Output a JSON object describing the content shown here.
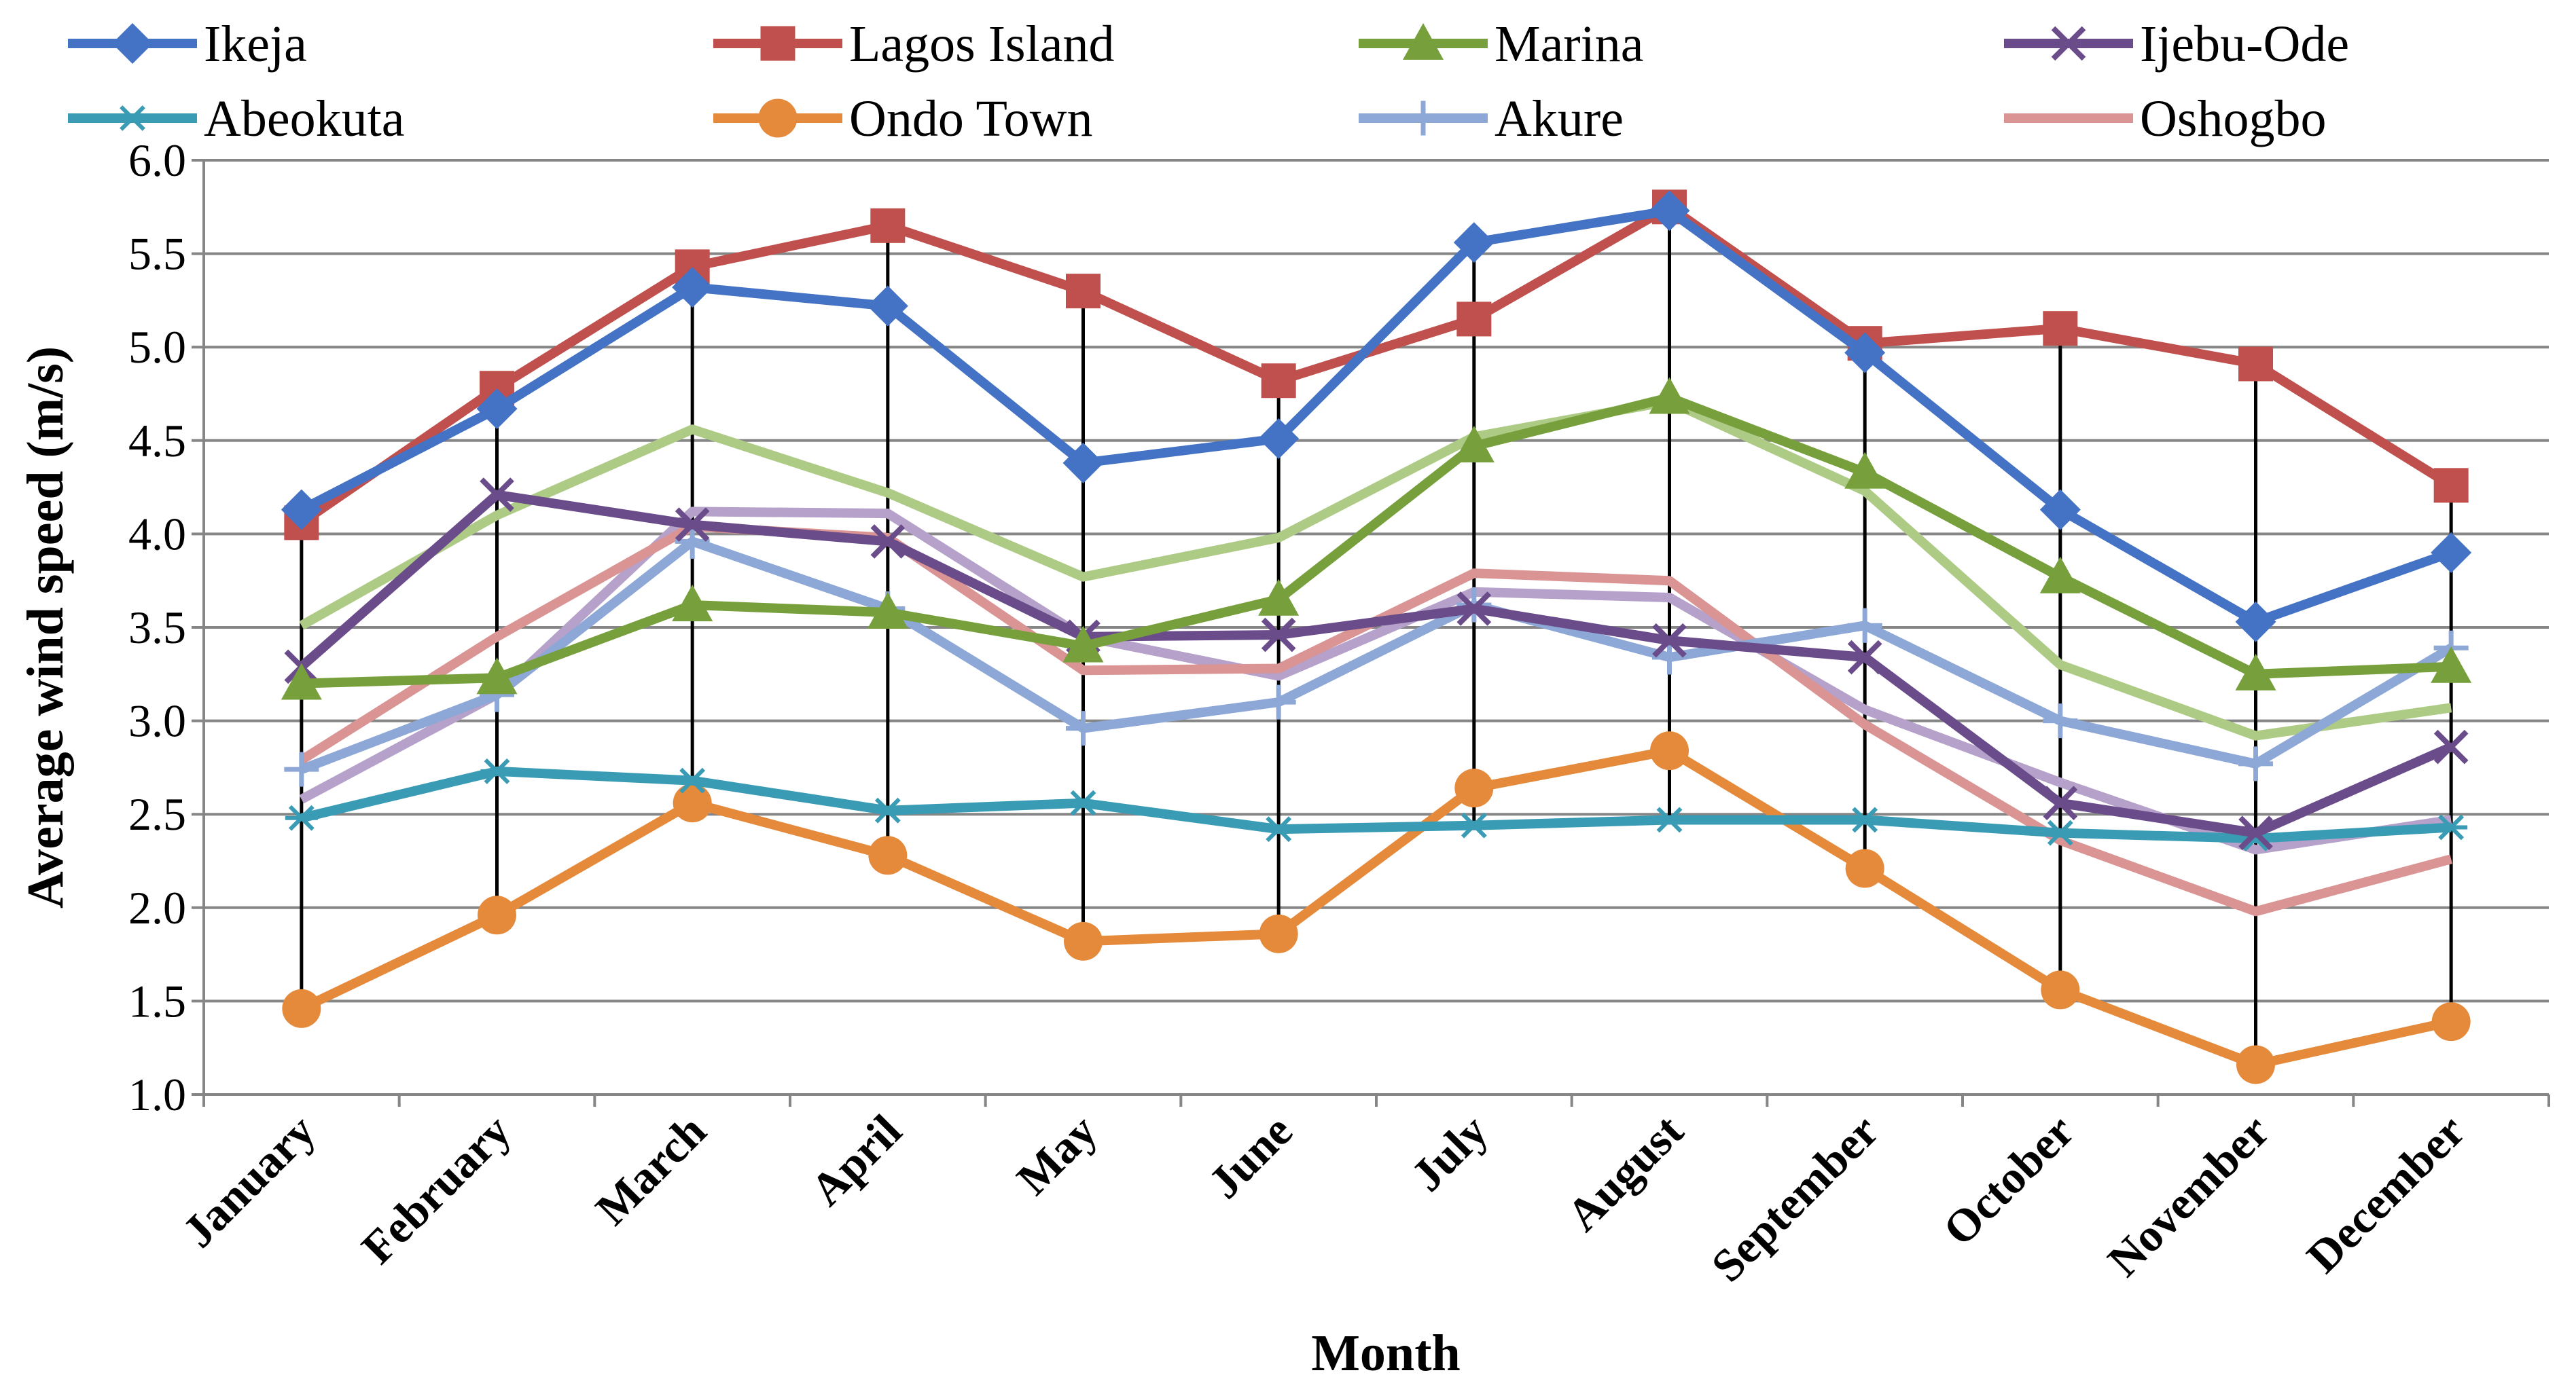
{
  "chart_data": {
    "type": "line",
    "title": "",
    "xlabel": "Month",
    "ylabel": "Average wind speed (m/s)",
    "ylim": [
      1.0,
      6.0
    ],
    "ytick_step": 0.5,
    "yticks": [
      "1.0",
      "1.5",
      "2.0",
      "2.5",
      "3.0",
      "3.5",
      "4.0",
      "4.5",
      "5.0",
      "5.5",
      "6.0"
    ],
    "grid": true,
    "legend_position": "top",
    "categories": [
      "January",
      "February",
      "March",
      "April",
      "May",
      "June",
      "July",
      "August",
      "September",
      "October",
      "November",
      "December"
    ],
    "series": [
      {
        "name": "Ikeja",
        "color": "#4472C4",
        "marker": "diamond",
        "values": [
          4.13,
          4.67,
          5.32,
          5.22,
          4.38,
          4.51,
          5.56,
          5.73,
          4.97,
          4.13,
          3.53,
          3.9
        ]
      },
      {
        "name": "Lagos Island",
        "color": "#C0504D",
        "marker": "square",
        "values": [
          4.06,
          4.78,
          5.43,
          5.65,
          5.3,
          4.82,
          5.15,
          5.75,
          5.02,
          5.1,
          4.91,
          4.26
        ]
      },
      {
        "name": "Marina",
        "color": "#77A03C",
        "marker": "triangle",
        "values": [
          3.2,
          3.23,
          3.62,
          3.58,
          3.4,
          3.65,
          4.47,
          4.73,
          4.33,
          3.77,
          3.25,
          3.29
        ]
      },
      {
        "name": "Ijebu-Ode",
        "color": "#6B4C8A",
        "marker": "x",
        "values": [
          3.29,
          4.21,
          4.05,
          3.96,
          3.45,
          3.46,
          3.6,
          3.43,
          3.34,
          2.56,
          2.4,
          2.86
        ]
      },
      {
        "name": "Abeokuta",
        "color": "#3A9BB5",
        "marker": "asterisk",
        "values": [
          2.48,
          2.73,
          2.68,
          2.52,
          2.56,
          2.42,
          2.44,
          2.47,
          2.47,
          2.4,
          2.37,
          2.43
        ]
      },
      {
        "name": "Ondo Town",
        "color": "#E5893A",
        "marker": "circle",
        "values": [
          1.46,
          1.96,
          2.56,
          2.28,
          1.82,
          1.86,
          2.64,
          2.84,
          2.21,
          1.56,
          1.16,
          1.39
        ]
      },
      {
        "name": "Akure",
        "color": "#8DA7D6",
        "marker": "plus",
        "values": [
          2.74,
          3.14,
          3.96,
          3.6,
          2.96,
          3.1,
          3.62,
          3.34,
          3.51,
          3.0,
          2.77,
          3.39
        ]
      },
      {
        "name": "Oshogbo",
        "color": "#D99493",
        "marker": "none",
        "values": [
          2.79,
          3.45,
          4.04,
          3.98,
          3.27,
          3.28,
          3.79,
          3.75,
          2.98,
          2.36,
          1.98,
          2.26
        ]
      },
      {
        "name": "",
        "color": "#B5A1C9",
        "marker": "none",
        "values": [
          2.58,
          3.14,
          4.12,
          4.11,
          3.45,
          3.24,
          3.69,
          3.66,
          3.06,
          2.67,
          2.31,
          2.47
        ]
      },
      {
        "name": "",
        "color": "#AECB86",
        "marker": "none",
        "values": [
          3.51,
          4.1,
          4.56,
          4.22,
          3.77,
          3.98,
          4.52,
          4.71,
          4.23,
          3.3,
          2.92,
          3.07
        ]
      }
    ],
    "drop_lines": true
  }
}
